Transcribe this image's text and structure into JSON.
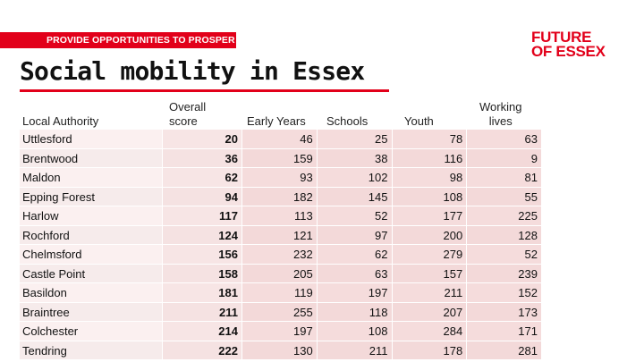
{
  "banner": {
    "text": "PROVIDE OPPORTUNITIES TO PROSPER"
  },
  "logo": {
    "line1": "FUTURE",
    "line2": "OF ESSEX"
  },
  "title": "Social mobility in Essex",
  "columns": {
    "local_authority": "Local Authority",
    "overall_line1": "Overall",
    "overall_line2": "score",
    "early_years": "Early Years",
    "schools": "Schools",
    "youth": "Youth",
    "working_line1": "Working",
    "working_line2": "lives"
  },
  "rows": [
    {
      "name": "Uttlesford",
      "overall": "20",
      "early_years": "46",
      "schools": "25",
      "youth": "78",
      "working_lives": "63"
    },
    {
      "name": "Brentwood",
      "overall": "36",
      "early_years": "159",
      "schools": "38",
      "youth": "116",
      "working_lives": "9"
    },
    {
      "name": "Maldon",
      "overall": "62",
      "early_years": "93",
      "schools": "102",
      "youth": "98",
      "working_lives": "81"
    },
    {
      "name": "Epping Forest",
      "overall": "94",
      "early_years": "182",
      "schools": "145",
      "youth": "108",
      "working_lives": "55"
    },
    {
      "name": "Harlow",
      "overall": "117",
      "early_years": "113",
      "schools": "52",
      "youth": "177",
      "working_lives": "225"
    },
    {
      "name": "Rochford",
      "overall": "124",
      "early_years": "121",
      "schools": "97",
      "youth": "200",
      "working_lives": "128"
    },
    {
      "name": "Chelmsford",
      "overall": "156",
      "early_years": "232",
      "schools": "62",
      "youth": "279",
      "working_lives": "52"
    },
    {
      "name": "Castle Point",
      "overall": "158",
      "early_years": "205",
      "schools": "63",
      "youth": "157",
      "working_lives": "239"
    },
    {
      "name": "Basildon",
      "overall": "181",
      "early_years": "119",
      "schools": "197",
      "youth": "211",
      "working_lives": "152"
    },
    {
      "name": "Braintree",
      "overall": "211",
      "early_years": "255",
      "schools": "118",
      "youth": "207",
      "working_lives": "173"
    },
    {
      "name": "Colchester",
      "overall": "214",
      "early_years": "197",
      "schools": "108",
      "youth": "284",
      "working_lives": "171"
    },
    {
      "name": "Tendring",
      "overall": "222",
      "early_years": "130",
      "schools": "211",
      "youth": "178",
      "working_lives": "281"
    }
  ],
  "colors": {
    "brand_red": "#e2001a"
  }
}
